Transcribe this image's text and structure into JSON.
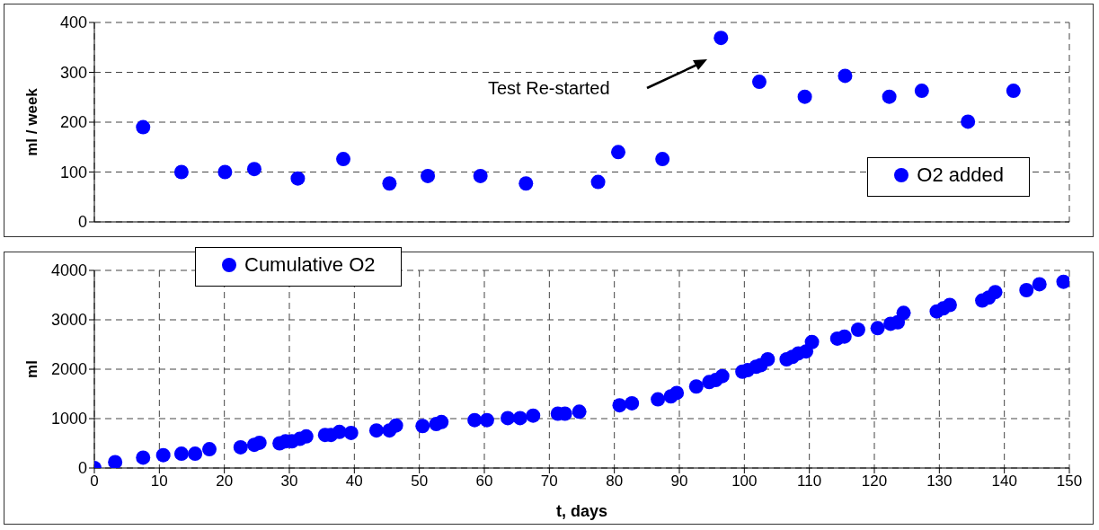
{
  "chart_data": [
    {
      "type": "scatter",
      "ylabel": "ml / week",
      "xlim": [
        0,
        150
      ],
      "xticks": [
        0,
        10,
        20,
        30,
        40,
        50,
        60,
        70,
        80,
        90,
        100,
        110,
        120,
        130,
        140,
        150
      ],
      "tick_labels": "y",
      "ylim": [
        0,
        400
      ],
      "yticks": [
        0,
        100,
        200,
        300,
        400
      ],
      "grid": true,
      "legend": "bottom right",
      "marker": "circle",
      "series": [
        {
          "name": "O2 added",
          "color": "#0000ff",
          "x": [
            7.5,
            13.4,
            20.1,
            24.6,
            31.3,
            38.3,
            45.4,
            51.3,
            59.4,
            66.4,
            77.5,
            80.6,
            87.4,
            96.4,
            102.3,
            109.3,
            115.5,
            122.3,
            127.3,
            134.4,
            141.4
          ],
          "values": [
            190,
            100,
            100,
            106,
            87,
            126,
            77,
            92,
            92,
            77,
            80,
            140,
            126,
            369,
            281,
            251,
            293,
            251,
            263,
            201,
            263
          ]
        }
      ],
      "annotations": [
        "Test Re-started"
      ]
    },
    {
      "type": "scatter",
      "xlabel": "t, days",
      "ylabel": "ml",
      "xlim": [
        0,
        150
      ],
      "xticks": [
        0,
        10,
        20,
        30,
        40,
        50,
        60,
        70,
        80,
        90,
        100,
        110,
        120,
        130,
        140,
        150
      ],
      "ylim": [
        0,
        4000
      ],
      "yticks": [
        0,
        1000,
        2000,
        3000,
        4000
      ],
      "grid": true,
      "legend": "top left",
      "marker": "circle",
      "series": [
        {
          "name": "Cumulative O2",
          "color": "#0000ff",
          "x": [
            0,
            3.2,
            7.5,
            10.6,
            13.4,
            15.5,
            17.7,
            22.5,
            24.6,
            25.4,
            28.5,
            29.4,
            30.4,
            31.6,
            32.6,
            35.5,
            36.4,
            37.7,
            39.5,
            43.4,
            45.4,
            46.4,
            50.5,
            52.6,
            53.4,
            58.5,
            60.4,
            63.6,
            65.5,
            67.5,
            71.3,
            72.4,
            74.6,
            80.8,
            82.7,
            86.7,
            88.7,
            89.6,
            92.6,
            94.6,
            95.6,
            96.6,
            99.7,
            100.5,
            101.8,
            102.5,
            103.6,
            106.5,
            107.4,
            108.3,
            109.5,
            110.4,
            114.3,
            115.4,
            117.5,
            120.5,
            122.5,
            123.6,
            124.5,
            129.6,
            130.6,
            131.6,
            136.6,
            137.6,
            138.6,
            143.4,
            145.4,
            149.1
          ],
          "values": [
            0,
            120,
            210,
            260,
            290,
            290,
            380,
            420,
            470,
            510,
            500,
            540,
            540,
            590,
            640,
            670,
            670,
            730,
            710,
            760,
            760,
            860,
            850,
            890,
            930,
            970,
            970,
            1010,
            1010,
            1060,
            1100,
            1100,
            1140,
            1270,
            1310,
            1390,
            1450,
            1520,
            1650,
            1740,
            1780,
            1860,
            1950,
            1980,
            2050,
            2080,
            2200,
            2200,
            2250,
            2320,
            2360,
            2550,
            2620,
            2660,
            2800,
            2830,
            2920,
            2950,
            3140,
            3170,
            3230,
            3300,
            3390,
            3450,
            3560,
            3600,
            3720,
            3770
          ]
        }
      ]
    }
  ]
}
